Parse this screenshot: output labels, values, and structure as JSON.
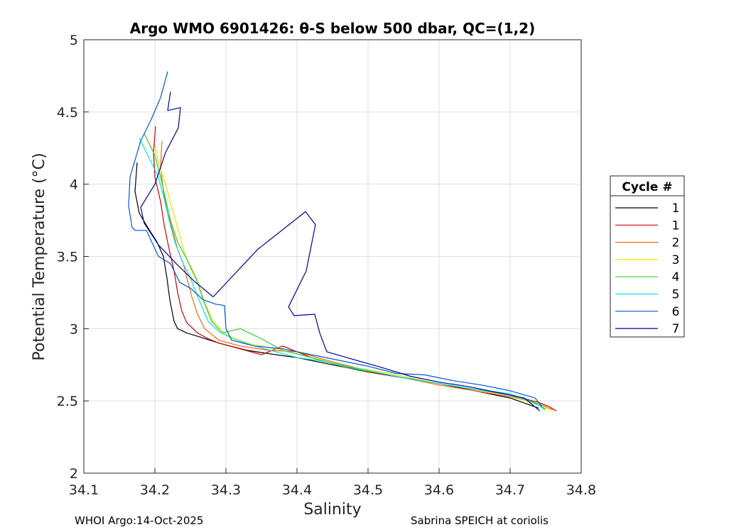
{
  "chart_data": {
    "type": "line",
    "title": "Argo WMO 6901426: θ-S below 500 dbar,  QC=(1,2)",
    "xlabel": "Salinity",
    "ylabel": "Potential Temperature (°C)",
    "xlim": [
      34.1,
      34.8
    ],
    "ylim": [
      2,
      5
    ],
    "xticks": [
      "34.1",
      "34.2",
      "34.3",
      "34.4",
      "34.5",
      "34.6",
      "34.7",
      "34.8"
    ],
    "yticks": [
      "2",
      "2.5",
      "3",
      "3.5",
      "4",
      "4.5",
      "5"
    ],
    "grid": true,
    "legend": {
      "title": "Cycle #",
      "placement": "right"
    },
    "series": [
      {
        "name": "1",
        "color": "#000000",
        "x": [
          34.175,
          34.172,
          34.178,
          34.19,
          34.203,
          34.212,
          34.217,
          34.221,
          34.227,
          34.232,
          34.245,
          34.265,
          34.29,
          34.33,
          34.37,
          34.4,
          34.45,
          34.5,
          34.55,
          34.6,
          34.65,
          34.7,
          34.74
        ],
        "y": [
          4.15,
          3.95,
          3.8,
          3.7,
          3.6,
          3.5,
          3.35,
          3.2,
          3.05,
          3.0,
          2.97,
          2.94,
          2.9,
          2.85,
          2.82,
          2.8,
          2.75,
          2.7,
          2.66,
          2.62,
          2.57,
          2.52,
          2.45
        ]
      },
      {
        "name": "1",
        "color": "#cc0000",
        "x": [
          34.201,
          34.198,
          34.2,
          34.208,
          34.213,
          34.22,
          34.227,
          34.232,
          34.238,
          34.245,
          34.26,
          34.275,
          34.29,
          34.32,
          34.35,
          34.38,
          34.42,
          34.46,
          34.5,
          34.55,
          34.6,
          34.65,
          34.7,
          34.74,
          34.755,
          34.765
        ],
        "y": [
          4.4,
          4.22,
          4.05,
          3.88,
          3.72,
          3.55,
          3.4,
          3.25,
          3.12,
          3.04,
          2.97,
          2.93,
          2.9,
          2.86,
          2.82,
          2.88,
          2.8,
          2.75,
          2.7,
          2.66,
          2.62,
          2.58,
          2.54,
          2.49,
          2.46,
          2.43
        ]
      },
      {
        "name": "2",
        "color": "#ff6600",
        "x": [
          34.21,
          34.208,
          34.212,
          34.218,
          34.225,
          34.232,
          34.24,
          34.245,
          34.252,
          34.26,
          34.27,
          34.29,
          34.32,
          34.36,
          34.4,
          34.45,
          34.5,
          34.55,
          34.6,
          34.65,
          34.7,
          34.74,
          34.76
        ],
        "y": [
          4.3,
          4.12,
          3.95,
          3.8,
          3.68,
          3.55,
          3.45,
          3.35,
          3.22,
          3.1,
          3.0,
          2.92,
          2.88,
          2.85,
          2.84,
          2.77,
          2.71,
          2.66,
          2.61,
          2.57,
          2.53,
          2.48,
          2.44
        ]
      },
      {
        "name": "3",
        "color": "#e6e600",
        "x": [
          34.2,
          34.205,
          34.215,
          34.223,
          34.232,
          34.24,
          34.25,
          34.262,
          34.27,
          34.282,
          34.3,
          34.33,
          34.37,
          34.42,
          34.47,
          34.52,
          34.56,
          34.6,
          34.65,
          34.7,
          34.745,
          34.76
        ],
        "y": [
          4.28,
          4.15,
          4.0,
          3.85,
          3.7,
          3.55,
          3.42,
          3.3,
          3.18,
          3.05,
          2.96,
          2.9,
          2.86,
          2.8,
          2.74,
          2.7,
          2.66,
          2.62,
          2.58,
          2.54,
          2.46,
          2.43
        ]
      },
      {
        "name": "4",
        "color": "#33cc33",
        "x": [
          34.185,
          34.19,
          34.2,
          34.208,
          34.215,
          34.222,
          34.232,
          34.245,
          34.258,
          34.268,
          34.28,
          34.295,
          34.32,
          34.35,
          34.38,
          34.42,
          34.47,
          34.52,
          34.56,
          34.6,
          34.65,
          34.7,
          34.74,
          34.75
        ],
        "y": [
          4.35,
          4.3,
          4.2,
          4.05,
          3.9,
          3.75,
          3.6,
          3.48,
          3.35,
          3.2,
          3.05,
          2.97,
          3.0,
          2.93,
          2.85,
          2.8,
          2.73,
          2.69,
          2.65,
          2.62,
          2.58,
          2.54,
          2.48,
          2.44
        ]
      },
      {
        "name": "5",
        "color": "#00e5e5",
        "x": [
          34.178,
          34.185,
          34.195,
          34.205,
          34.213,
          34.22,
          34.228,
          34.238,
          34.25,
          34.262,
          34.275,
          34.29,
          34.31,
          34.34,
          34.37,
          34.4,
          34.43,
          34.47,
          34.52,
          34.56,
          34.6,
          34.65,
          34.7,
          34.74,
          34.748
        ],
        "y": [
          4.32,
          4.25,
          4.15,
          4.05,
          3.9,
          3.75,
          3.6,
          3.47,
          3.35,
          3.2,
          3.05,
          2.98,
          2.93,
          2.88,
          2.84,
          2.8,
          2.78,
          2.74,
          2.69,
          2.65,
          2.62,
          2.58,
          2.55,
          2.47,
          2.44
        ]
      },
      {
        "name": "6",
        "color": "#0055dd",
        "x": [
          34.218,
          34.208,
          34.195,
          34.18,
          34.165,
          34.163,
          34.168,
          34.172,
          34.188,
          34.205,
          34.222,
          34.235,
          34.25,
          34.268,
          34.285,
          34.298,
          34.3,
          34.308,
          34.34,
          34.38,
          34.42,
          34.46,
          34.5,
          34.54,
          34.58,
          34.62,
          34.66,
          34.7,
          34.735,
          34.745
        ],
        "y": [
          4.78,
          4.6,
          4.45,
          4.3,
          4.05,
          3.85,
          3.7,
          3.68,
          3.68,
          3.5,
          3.45,
          3.32,
          3.28,
          3.2,
          3.17,
          3.16,
          3.0,
          2.92,
          2.88,
          2.86,
          2.82,
          2.78,
          2.74,
          2.69,
          2.68,
          2.64,
          2.61,
          2.57,
          2.52,
          2.46
        ]
      },
      {
        "name": "7",
        "color": "#000099",
        "x": [
          34.222,
          34.218,
          34.236,
          34.233,
          34.215,
          34.2,
          34.18,
          34.185,
          34.205,
          34.23,
          34.255,
          34.282,
          34.345,
          34.412,
          34.426,
          34.413,
          34.388,
          34.396,
          34.425,
          34.432,
          34.442,
          34.47,
          34.52,
          34.56,
          34.6,
          34.64,
          34.68,
          34.72,
          34.742
        ],
        "y": [
          4.64,
          4.51,
          4.53,
          4.39,
          4.22,
          4.0,
          3.84,
          3.73,
          3.58,
          3.45,
          3.33,
          3.22,
          3.55,
          3.81,
          3.72,
          3.4,
          3.15,
          3.09,
          3.1,
          2.97,
          2.84,
          2.8,
          2.73,
          2.67,
          2.63,
          2.6,
          2.56,
          2.52,
          2.43
        ]
      }
    ]
  },
  "footer": {
    "left": "WHOI Argo:14-Oct-2025",
    "right": "Sabrina SPEICH at coriolis"
  }
}
